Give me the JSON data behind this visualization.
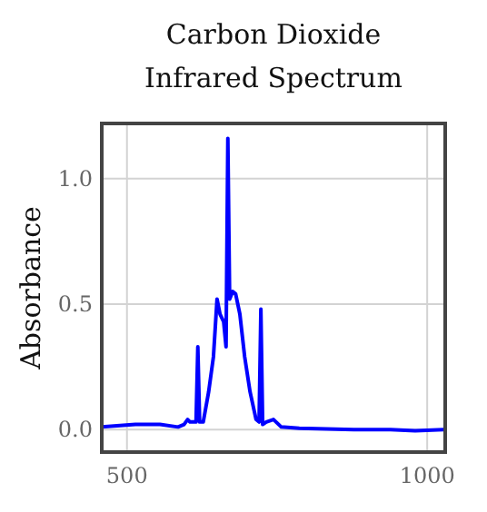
{
  "chart_data": {
    "type": "line",
    "title": "Carbon Dioxide\nInfrared Spectrum",
    "ylabel": "Absorbance",
    "xlim": [
      458,
      1030
    ],
    "ylim": [
      -0.09,
      1.22
    ],
    "xticks": [
      500,
      1000
    ],
    "yticks": [
      {
        "value": 0,
        "label": "0.0"
      },
      {
        "value": 0.5,
        "label": "0.5"
      },
      {
        "value": 1,
        "label": "1.0"
      }
    ],
    "grid": true,
    "marker": "none",
    "line_style": "solid",
    "series": [
      {
        "color": "#0000ff",
        "x": [
          458,
          514,
          555,
          585,
          595,
          601,
          605,
          615,
          618,
          621,
          627,
          636,
          644,
          650,
          655,
          661,
          665,
          668,
          671,
          676,
          681,
          688,
          696,
          705,
          715,
          720,
          723,
          726,
          732,
          744,
          757,
          787,
          878,
          939,
          980,
          1027
        ],
        "values": [
          0.01,
          0.02,
          0.02,
          0.01,
          0.02,
          0.04,
          0.03,
          0.03,
          0.33,
          0.03,
          0.03,
          0.15,
          0.29,
          0.52,
          0.46,
          0.43,
          0.33,
          1.16,
          0.52,
          0.55,
          0.54,
          0.46,
          0.29,
          0.15,
          0.04,
          0.03,
          0.48,
          0.02,
          0.03,
          0.04,
          0.01,
          0.005,
          0,
          0,
          -0.005,
          0
        ]
      }
    ]
  }
}
